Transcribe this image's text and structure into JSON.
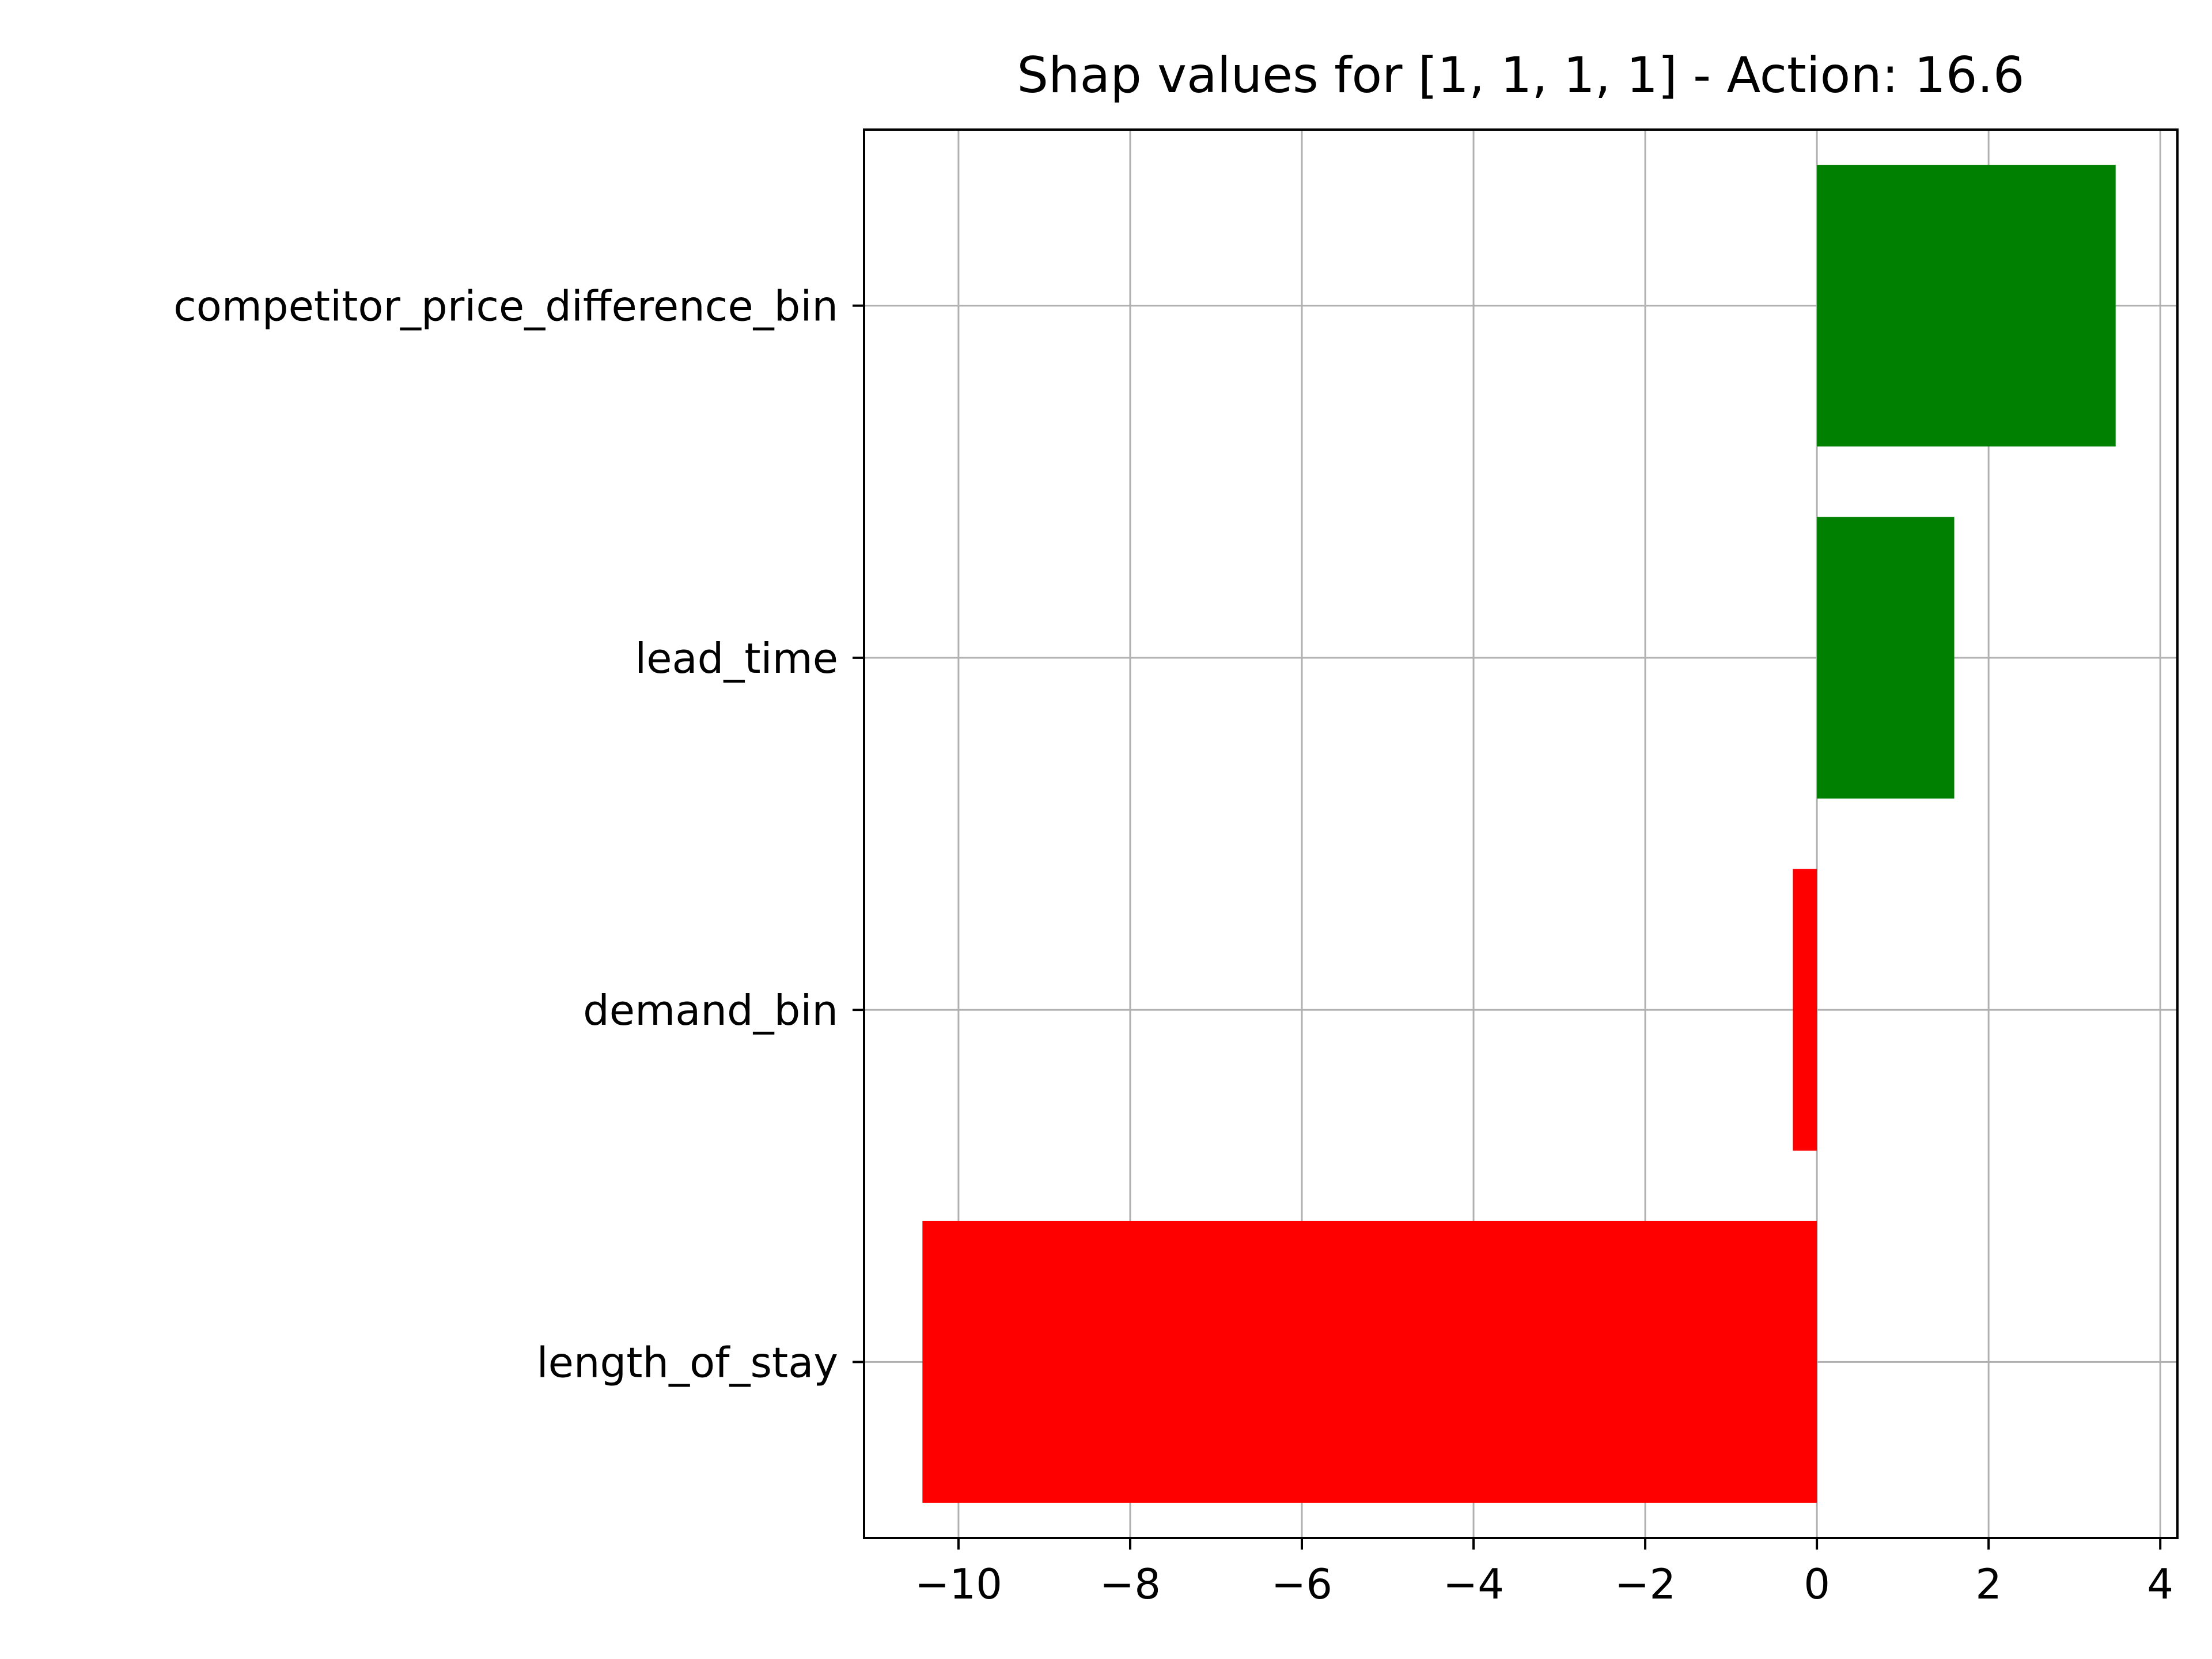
{
  "chart_data": {
    "type": "bar",
    "orientation": "horizontal",
    "title": "Shap values for [1, 1, 1, 1] - Action: 16.6",
    "xlabel": "",
    "ylabel": "",
    "categories": [
      "competitor_price_difference_bin",
      "lead_time",
      "demand_bin",
      "length_of_stay"
    ],
    "values": [
      3.48,
      1.6,
      -0.28,
      -10.42
    ],
    "bar_colors": [
      "#008000",
      "#008000",
      "#ff0000",
      "#ff0000"
    ],
    "xlim": [
      -11.1,
      4.2
    ],
    "xticks": [
      -10,
      -8,
      -6,
      -4,
      -2,
      0,
      2,
      4
    ],
    "xtick_labels": [
      "−10",
      "−8",
      "−6",
      "−4",
      "−2",
      "0",
      "2",
      "4"
    ],
    "grid": true,
    "legend": "none"
  }
}
